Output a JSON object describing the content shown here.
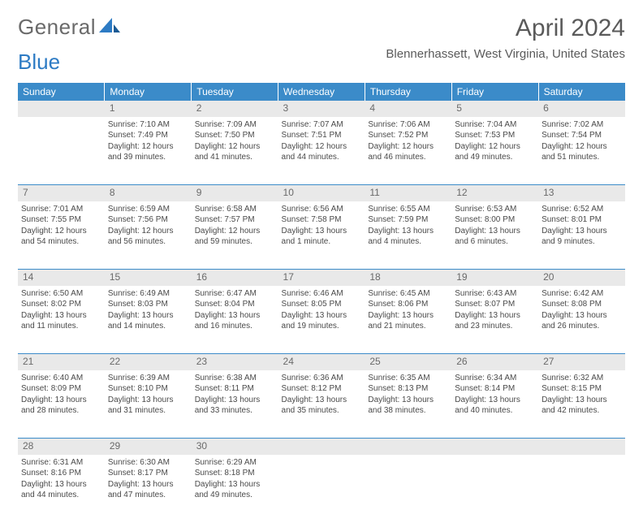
{
  "logo": {
    "part1": "General",
    "part2": "Blue"
  },
  "title": "April 2024",
  "location": "Blennerhassett, West Virginia, United States",
  "colors": {
    "header_bg": "#3b8bc9",
    "header_text": "#ffffff",
    "daynum_bg": "#e9e9e9",
    "border": "#3b8bc9",
    "text": "#4a4a4a",
    "logo_gray": "#6a6a6a",
    "logo_blue": "#2d7bc4"
  },
  "weekdays": [
    "Sunday",
    "Monday",
    "Tuesday",
    "Wednesday",
    "Thursday",
    "Friday",
    "Saturday"
  ],
  "weeks": [
    {
      "nums": [
        "",
        "1",
        "2",
        "3",
        "4",
        "5",
        "6"
      ],
      "cells": [
        null,
        {
          "sunrise": "Sunrise: 7:10 AM",
          "sunset": "Sunset: 7:49 PM",
          "day1": "Daylight: 12 hours",
          "day2": "and 39 minutes."
        },
        {
          "sunrise": "Sunrise: 7:09 AM",
          "sunset": "Sunset: 7:50 PM",
          "day1": "Daylight: 12 hours",
          "day2": "and 41 minutes."
        },
        {
          "sunrise": "Sunrise: 7:07 AM",
          "sunset": "Sunset: 7:51 PM",
          "day1": "Daylight: 12 hours",
          "day2": "and 44 minutes."
        },
        {
          "sunrise": "Sunrise: 7:06 AM",
          "sunset": "Sunset: 7:52 PM",
          "day1": "Daylight: 12 hours",
          "day2": "and 46 minutes."
        },
        {
          "sunrise": "Sunrise: 7:04 AM",
          "sunset": "Sunset: 7:53 PM",
          "day1": "Daylight: 12 hours",
          "day2": "and 49 minutes."
        },
        {
          "sunrise": "Sunrise: 7:02 AM",
          "sunset": "Sunset: 7:54 PM",
          "day1": "Daylight: 12 hours",
          "day2": "and 51 minutes."
        }
      ]
    },
    {
      "nums": [
        "7",
        "8",
        "9",
        "10",
        "11",
        "12",
        "13"
      ],
      "cells": [
        {
          "sunrise": "Sunrise: 7:01 AM",
          "sunset": "Sunset: 7:55 PM",
          "day1": "Daylight: 12 hours",
          "day2": "and 54 minutes."
        },
        {
          "sunrise": "Sunrise: 6:59 AM",
          "sunset": "Sunset: 7:56 PM",
          "day1": "Daylight: 12 hours",
          "day2": "and 56 minutes."
        },
        {
          "sunrise": "Sunrise: 6:58 AM",
          "sunset": "Sunset: 7:57 PM",
          "day1": "Daylight: 12 hours",
          "day2": "and 59 minutes."
        },
        {
          "sunrise": "Sunrise: 6:56 AM",
          "sunset": "Sunset: 7:58 PM",
          "day1": "Daylight: 13 hours",
          "day2": "and 1 minute."
        },
        {
          "sunrise": "Sunrise: 6:55 AM",
          "sunset": "Sunset: 7:59 PM",
          "day1": "Daylight: 13 hours",
          "day2": "and 4 minutes."
        },
        {
          "sunrise": "Sunrise: 6:53 AM",
          "sunset": "Sunset: 8:00 PM",
          "day1": "Daylight: 13 hours",
          "day2": "and 6 minutes."
        },
        {
          "sunrise": "Sunrise: 6:52 AM",
          "sunset": "Sunset: 8:01 PM",
          "day1": "Daylight: 13 hours",
          "day2": "and 9 minutes."
        }
      ]
    },
    {
      "nums": [
        "14",
        "15",
        "16",
        "17",
        "18",
        "19",
        "20"
      ],
      "cells": [
        {
          "sunrise": "Sunrise: 6:50 AM",
          "sunset": "Sunset: 8:02 PM",
          "day1": "Daylight: 13 hours",
          "day2": "and 11 minutes."
        },
        {
          "sunrise": "Sunrise: 6:49 AM",
          "sunset": "Sunset: 8:03 PM",
          "day1": "Daylight: 13 hours",
          "day2": "and 14 minutes."
        },
        {
          "sunrise": "Sunrise: 6:47 AM",
          "sunset": "Sunset: 8:04 PM",
          "day1": "Daylight: 13 hours",
          "day2": "and 16 minutes."
        },
        {
          "sunrise": "Sunrise: 6:46 AM",
          "sunset": "Sunset: 8:05 PM",
          "day1": "Daylight: 13 hours",
          "day2": "and 19 minutes."
        },
        {
          "sunrise": "Sunrise: 6:45 AM",
          "sunset": "Sunset: 8:06 PM",
          "day1": "Daylight: 13 hours",
          "day2": "and 21 minutes."
        },
        {
          "sunrise": "Sunrise: 6:43 AM",
          "sunset": "Sunset: 8:07 PM",
          "day1": "Daylight: 13 hours",
          "day2": "and 23 minutes."
        },
        {
          "sunrise": "Sunrise: 6:42 AM",
          "sunset": "Sunset: 8:08 PM",
          "day1": "Daylight: 13 hours",
          "day2": "and 26 minutes."
        }
      ]
    },
    {
      "nums": [
        "21",
        "22",
        "23",
        "24",
        "25",
        "26",
        "27"
      ],
      "cells": [
        {
          "sunrise": "Sunrise: 6:40 AM",
          "sunset": "Sunset: 8:09 PM",
          "day1": "Daylight: 13 hours",
          "day2": "and 28 minutes."
        },
        {
          "sunrise": "Sunrise: 6:39 AM",
          "sunset": "Sunset: 8:10 PM",
          "day1": "Daylight: 13 hours",
          "day2": "and 31 minutes."
        },
        {
          "sunrise": "Sunrise: 6:38 AM",
          "sunset": "Sunset: 8:11 PM",
          "day1": "Daylight: 13 hours",
          "day2": "and 33 minutes."
        },
        {
          "sunrise": "Sunrise: 6:36 AM",
          "sunset": "Sunset: 8:12 PM",
          "day1": "Daylight: 13 hours",
          "day2": "and 35 minutes."
        },
        {
          "sunrise": "Sunrise: 6:35 AM",
          "sunset": "Sunset: 8:13 PM",
          "day1": "Daylight: 13 hours",
          "day2": "and 38 minutes."
        },
        {
          "sunrise": "Sunrise: 6:34 AM",
          "sunset": "Sunset: 8:14 PM",
          "day1": "Daylight: 13 hours",
          "day2": "and 40 minutes."
        },
        {
          "sunrise": "Sunrise: 6:32 AM",
          "sunset": "Sunset: 8:15 PM",
          "day1": "Daylight: 13 hours",
          "day2": "and 42 minutes."
        }
      ]
    },
    {
      "nums": [
        "28",
        "29",
        "30",
        "",
        "",
        "",
        ""
      ],
      "cells": [
        {
          "sunrise": "Sunrise: 6:31 AM",
          "sunset": "Sunset: 8:16 PM",
          "day1": "Daylight: 13 hours",
          "day2": "and 44 minutes."
        },
        {
          "sunrise": "Sunrise: 6:30 AM",
          "sunset": "Sunset: 8:17 PM",
          "day1": "Daylight: 13 hours",
          "day2": "and 47 minutes."
        },
        {
          "sunrise": "Sunrise: 6:29 AM",
          "sunset": "Sunset: 8:18 PM",
          "day1": "Daylight: 13 hours",
          "day2": "and 49 minutes."
        },
        null,
        null,
        null,
        null
      ]
    }
  ]
}
